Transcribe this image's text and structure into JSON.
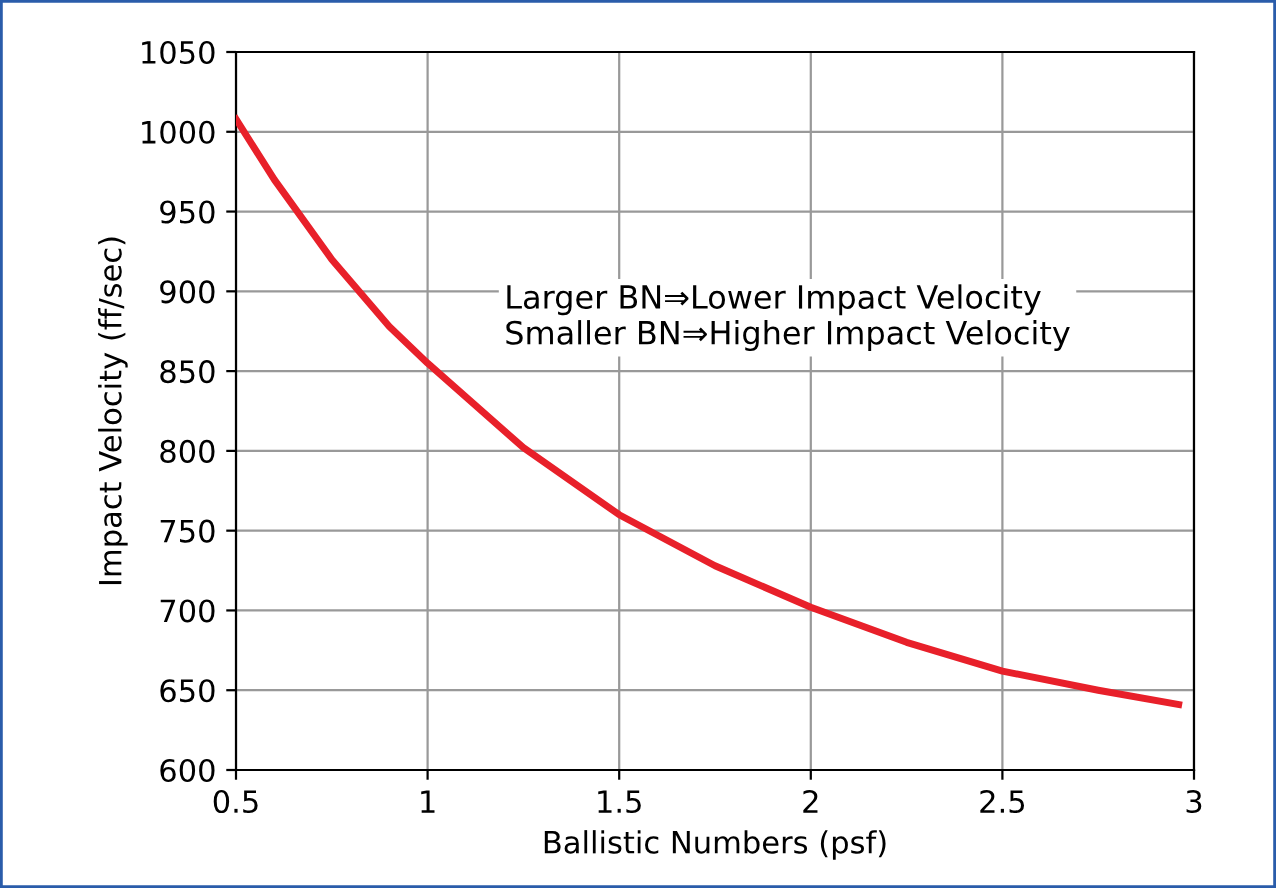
{
  "chart_data": {
    "type": "line",
    "xlabel": "Ballistic Numbers (psf)",
    "ylabel": "Impact Velocity (ff/sec)",
    "annotations": [
      "Larger BN⇒Lower Impact Velocity\nSmaller BN⇒Higher Impact Velocity"
    ],
    "x": [
      0.5,
      0.6,
      0.75,
      0.9,
      1,
      1.25,
      1.5,
      1.75,
      2,
      2.25,
      2.5,
      2.75,
      2.96
    ],
    "series": [
      {
        "color": "#e8202a",
        "values": [
          1008,
          970,
          920,
          878,
          855,
          802,
          760,
          728,
          702,
          680,
          662,
          650,
          641
        ]
      }
    ],
    "xlim": [
      0.5,
      3
    ],
    "ylim": [
      600,
      1050
    ],
    "xticks": [
      0.5,
      1,
      1.5,
      2,
      2.5,
      3
    ],
    "yticks": [
      600,
      650,
      700,
      750,
      800,
      850,
      900,
      950,
      1000,
      1050
    ],
    "grid": true,
    "legend": false,
    "marker": "none",
    "line_style": "solid"
  }
}
